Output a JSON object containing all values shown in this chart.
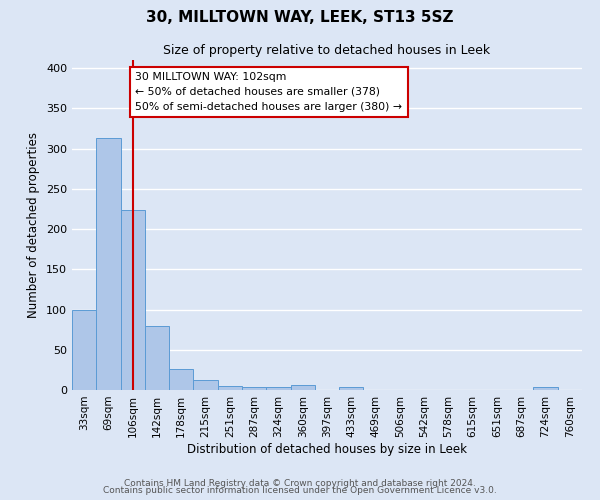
{
  "title": "30, MILLTOWN WAY, LEEK, ST13 5SZ",
  "subtitle": "Size of property relative to detached houses in Leek",
  "xlabel": "Distribution of detached houses by size in Leek",
  "ylabel": "Number of detached properties",
  "bar_labels": [
    "33sqm",
    "69sqm",
    "106sqm",
    "142sqm",
    "178sqm",
    "215sqm",
    "251sqm",
    "287sqm",
    "324sqm",
    "360sqm",
    "397sqm",
    "433sqm",
    "469sqm",
    "506sqm",
    "542sqm",
    "578sqm",
    "615sqm",
    "651sqm",
    "687sqm",
    "724sqm",
    "760sqm"
  ],
  "bar_values": [
    99,
    313,
    224,
    80,
    26,
    13,
    5,
    4,
    4,
    6,
    0,
    4,
    0,
    0,
    0,
    0,
    0,
    0,
    0,
    4,
    0
  ],
  "bar_color": "#aec6e8",
  "bar_edge_color": "#5b9bd5",
  "vline_x": 2,
  "vline_color": "#cc0000",
  "annotation_line1": "30 MILLTOWN WAY: 102sqm",
  "annotation_line2": "← 50% of detached houses are smaller (378)",
  "annotation_line3": "50% of semi-detached houses are larger (380) →",
  "annotation_box_color": "#cc0000",
  "annotation_box_fill": "#ffffff",
  "ylim": [
    0,
    410
  ],
  "yticks": [
    0,
    50,
    100,
    150,
    200,
    250,
    300,
    350,
    400
  ],
  "footer_line1": "Contains HM Land Registry data © Crown copyright and database right 2024.",
  "footer_line2": "Contains public sector information licensed under the Open Government Licence v3.0.",
  "background_color": "#dce6f5",
  "plot_background": "#dce6f5",
  "grid_color": "#ffffff",
  "title_fontsize": 11,
  "subtitle_fontsize": 9,
  "tick_fontsize": 7.5,
  "ylabel_fontsize": 8.5,
  "xlabel_fontsize": 8.5,
  "footer_fontsize": 6.5
}
